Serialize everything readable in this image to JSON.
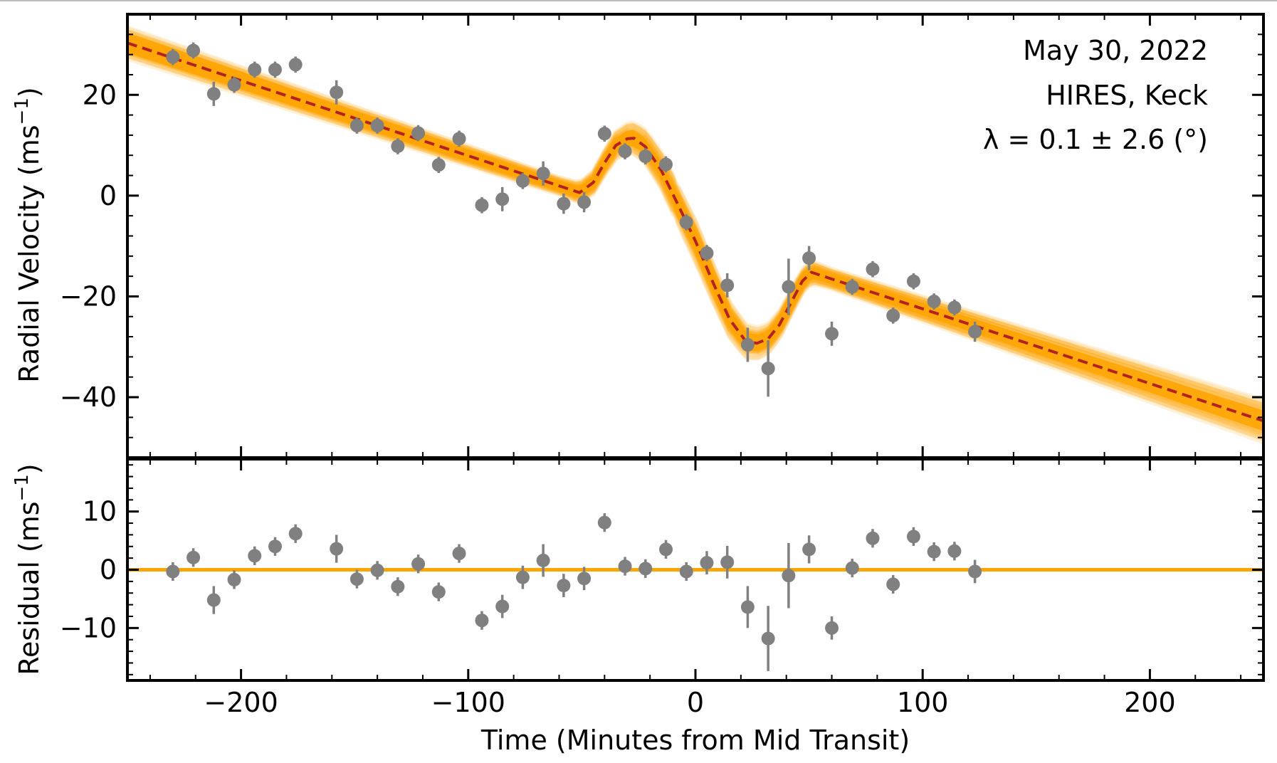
{
  "chart_data": [
    {
      "type": "scatter",
      "panel": "top",
      "ylabel": "Radial Velocity (ms",
      "ylabel_sup": "−1",
      "ylabel_close": ")",
      "xlim": [
        -250,
        250
      ],
      "ylim": [
        -52,
        36
      ],
      "xticks": [
        -200,
        -100,
        0,
        100,
        200
      ],
      "yticks": [
        20,
        0,
        -20,
        -40
      ],
      "ytick_labels": [
        "20",
        "0",
        "−20",
        "−40"
      ],
      "annotations": [
        "May 30, 2022",
        "HIRES, Keck",
        "λ = 0.1 ± 2.6 (°)"
      ],
      "colors": {
        "points": "#808080",
        "model_band": "#ffa500",
        "best_fit": "#b22222"
      },
      "series": [
        {
          "kind": "data",
          "x": [
            -230,
            -221,
            -212,
            -203,
            -194,
            -185,
            -176,
            -158,
            -149,
            -140,
            -131,
            -122,
            -113,
            -104,
            -94,
            -85,
            -76,
            -67,
            -58,
            -49,
            -40,
            -31,
            -22,
            -13,
            -4,
            5,
            14,
            23,
            32,
            41,
            50,
            60,
            69,
            78,
            87,
            96,
            105,
            114,
            123
          ],
          "y": [
            27.5,
            28.8,
            20.2,
            22.0,
            25.0,
            25.0,
            26.0,
            20.5,
            13.9,
            13.9,
            9.8,
            12.4,
            6.1,
            11.3,
            -1.9,
            -0.7,
            2.9,
            4.4,
            -1.6,
            -1.3,
            12.3,
            8.8,
            7.8,
            6.2,
            -5.3,
            -11.4,
            -17.8,
            -29.6,
            -34.3,
            -18.1,
            -12.4,
            -27.4,
            -18.1,
            -14.6,
            -23.8,
            -17.0,
            -21.0,
            -22.2,
            -27.0
          ],
          "err": [
            1.6,
            1.6,
            2.4,
            1.6,
            1.6,
            1.6,
            1.6,
            2.4,
            1.6,
            1.6,
            1.6,
            1.6,
            1.6,
            1.6,
            1.6,
            2.4,
            1.6,
            2.4,
            2.0,
            2.0,
            1.6,
            1.6,
            1.6,
            1.6,
            1.6,
            1.6,
            2.4,
            3.4,
            5.6,
            5.6,
            2.4,
            2.4,
            1.6,
            1.6,
            1.6,
            1.6,
            1.6,
            1.6,
            2.0
          ]
        },
        {
          "kind": "model",
          "x": [
            -250,
            -51,
            -45,
            -40,
            -35,
            -30,
            -27,
            -22,
            -15,
            -8,
            0,
            8,
            15,
            22,
            27,
            32,
            37,
            42,
            47,
            51,
            250
          ],
          "y": [
            30.3,
            0.6,
            2.6,
            6.5,
            10.0,
            11.3,
            11.4,
            9.7,
            5.0,
            -1.5,
            -9.0,
            -17.5,
            -24.5,
            -28.8,
            -29.3,
            -28.4,
            -25.6,
            -21.3,
            -17.0,
            -15.2,
            -44.7
          ]
        }
      ]
    },
    {
      "type": "scatter",
      "panel": "bottom",
      "xlabel": "Time (Minutes from Mid Transit)",
      "ylabel": "Residual (ms",
      "ylabel_sup": "−1",
      "ylabel_close": ")",
      "xlim": [
        -250,
        250
      ],
      "ylim": [
        -19,
        19
      ],
      "xticks": [
        -200,
        -100,
        0,
        100,
        200
      ],
      "xtick_labels": [
        "−200",
        "−100",
        "0",
        "100",
        "200"
      ],
      "yticks": [
        10,
        0,
        -10
      ],
      "ytick_labels": [
        "10",
        "0",
        "−10"
      ],
      "zero_line": 0,
      "series": [
        {
          "kind": "residuals",
          "x": [
            -230,
            -221,
            -212,
            -203,
            -194,
            -185,
            -176,
            -158,
            -149,
            -140,
            -131,
            -122,
            -113,
            -104,
            -94,
            -85,
            -76,
            -67,
            -58,
            -49,
            -40,
            -31,
            -22,
            -13,
            -4,
            5,
            14,
            23,
            32,
            41,
            50,
            60,
            69,
            78,
            87,
            96,
            105,
            114,
            123
          ],
          "y": [
            -0.3,
            2.1,
            -5.2,
            -1.7,
            2.4,
            4.0,
            6.2,
            3.6,
            -1.6,
            -0.1,
            -2.9,
            1.0,
            -3.8,
            2.8,
            -8.7,
            -6.3,
            -1.3,
            1.6,
            -2.7,
            -1.5,
            8.1,
            0.6,
            0.2,
            3.5,
            -0.3,
            1.2,
            1.3,
            -6.4,
            -11.8,
            -1.0,
            3.5,
            -10.0,
            0.3,
            5.4,
            -2.5,
            5.7,
            3.1,
            3.2,
            -0.3
          ],
          "err": [
            1.6,
            1.6,
            2.4,
            1.6,
            1.6,
            1.6,
            1.6,
            2.4,
            1.6,
            1.6,
            1.6,
            1.6,
            1.6,
            1.6,
            1.6,
            2.0,
            2.0,
            2.8,
            2.0,
            2.0,
            1.6,
            1.6,
            1.6,
            1.6,
            1.6,
            2.0,
            2.8,
            3.6,
            5.6,
            5.6,
            2.4,
            2.0,
            1.6,
            1.6,
            1.6,
            1.6,
            1.6,
            1.6,
            2.0
          ]
        }
      ]
    }
  ]
}
